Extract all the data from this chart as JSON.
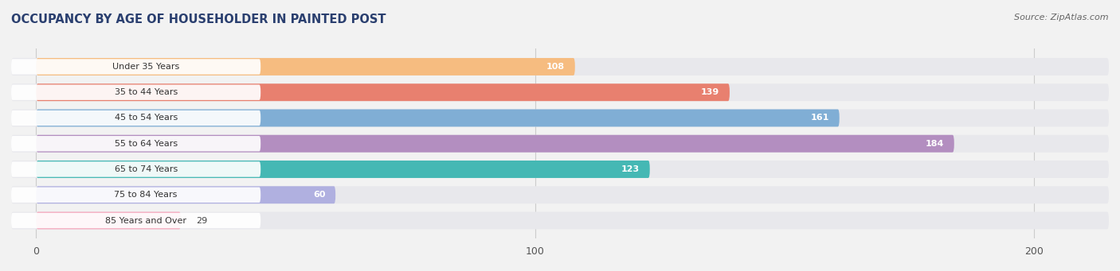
{
  "title": "OCCUPANCY BY AGE OF HOUSEHOLDER IN PAINTED POST",
  "source": "Source: ZipAtlas.com",
  "categories": [
    "Under 35 Years",
    "35 to 44 Years",
    "45 to 54 Years",
    "55 to 64 Years",
    "65 to 74 Years",
    "75 to 84 Years",
    "85 Years and Over"
  ],
  "values": [
    108,
    139,
    161,
    184,
    123,
    60,
    29
  ],
  "bar_colors": [
    "#f6bc80",
    "#e8806f",
    "#80aed5",
    "#b38ec0",
    "#45b8b4",
    "#b0b0e0",
    "#f5a8bc"
  ],
  "background_color": "#f2f2f2",
  "xlim": [
    -5,
    215
  ],
  "xticks": [
    0,
    100,
    200
  ],
  "bar_height": 0.68,
  "label_color_dark": "#555555",
  "label_color_light": "#ffffff",
  "title_color": "#2a3f6f",
  "title_fontsize": 10.5,
  "source_color": "#666666",
  "axis_color": "#cccccc"
}
